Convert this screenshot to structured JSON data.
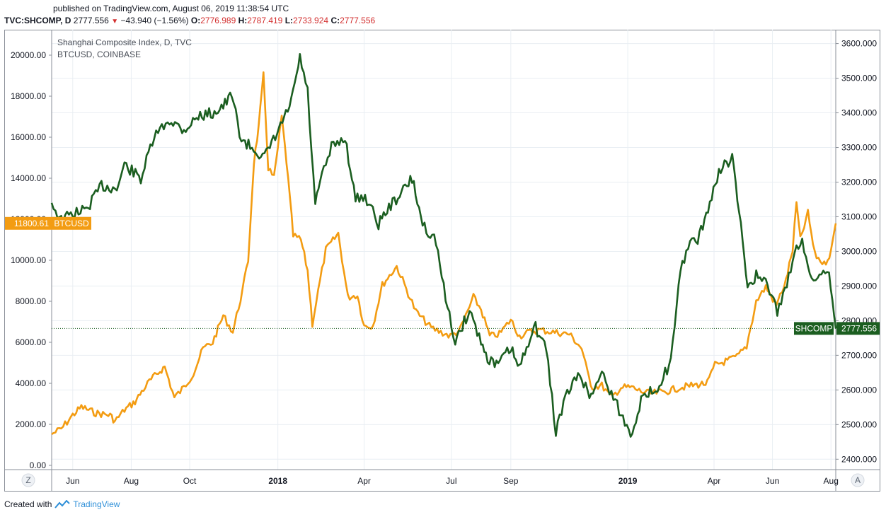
{
  "header": {
    "published": "published on TradingView.com, August 06, 2019 11:38:54 UTC",
    "symbol": "TVC:SHCOMP, D",
    "last": "2777.556",
    "change": "−43.940 (−1.56%)",
    "o_label": "O:",
    "o_value": "2776.989",
    "h_label": "H:",
    "h_value": "2787.419",
    "l_label": "L:",
    "l_value": "2733.924",
    "c_label": "C:",
    "c_value": "2777.556"
  },
  "footer": {
    "created_with": "Created with",
    "brand": "TradingView"
  },
  "colors": {
    "shcomp": "#1b5e20",
    "btc": "#f39c12",
    "grid": "#e9eef3",
    "frame": "#8a8f98",
    "down": "#d32f2f"
  },
  "chart_data": {
    "type": "line",
    "title": "Shanghai Composite Index, D, TVC",
    "subtitle": "BTCUSD, COINBASE",
    "x_ticks": [
      "Jun",
      "Aug",
      "Oct",
      "2018",
      "Apr",
      "Jul",
      "Sep",
      "2019",
      "Apr",
      "Jun",
      "Aug"
    ],
    "x_ticks_bold": [
      "2018",
      "2019"
    ],
    "left_axis": {
      "series": "BTCUSD",
      "ticks": [
        "0.00",
        "2000.00",
        "4000.00",
        "6000.00",
        "8000.00",
        "10000.00",
        "12000.00",
        "14000.00",
        "16000.00",
        "18000.00",
        "20000.00"
      ],
      "ylim": [
        0,
        20000
      ]
    },
    "right_axis": {
      "series": "SHCOMP",
      "ticks": [
        "2400.000",
        "2500.000",
        "2600.000",
        "2700.000",
        "2800.000",
        "2900.000",
        "3000.000",
        "3100.000",
        "3200.000",
        "3300.000",
        "3400.000",
        "3500.000",
        "3600.000"
      ],
      "ylim": [
        2370,
        3640
      ]
    },
    "tick_dates": [
      "2017-06-01",
      "2017-08-01",
      "2017-10-01",
      "2018-01-01",
      "2018-04-01",
      "2018-07-01",
      "2018-09-01",
      "2019-01-01",
      "2019-04-01",
      "2019-06-01",
      "2019-08-01"
    ],
    "x_range": [
      "2017-05-10",
      "2019-08-06"
    ],
    "series": [
      {
        "name": "BTCUSD",
        "axis": "left",
        "last_label": "11800.61",
        "last_tag": "BTCUSD",
        "points": [
          [
            "2017-05-10",
            1520
          ],
          [
            "2017-05-20",
            1780
          ],
          [
            "2017-06-01",
            2450
          ],
          [
            "2017-06-10",
            2850
          ],
          [
            "2017-06-25",
            2550
          ],
          [
            "2017-07-10",
            2450
          ],
          [
            "2017-07-15",
            2150
          ],
          [
            "2017-07-25",
            2700
          ],
          [
            "2017-08-05",
            3100
          ],
          [
            "2017-08-12",
            3600
          ],
          [
            "2017-08-20",
            4100
          ],
          [
            "2017-08-31",
            4600
          ],
          [
            "2017-09-05",
            4800
          ],
          [
            "2017-09-15",
            3300
          ],
          [
            "2017-09-25",
            3800
          ],
          [
            "2017-10-05",
            4500
          ],
          [
            "2017-10-15",
            5700
          ],
          [
            "2017-10-25",
            6000
          ],
          [
            "2017-11-05",
            7300
          ],
          [
            "2017-11-15",
            6500
          ],
          [
            "2017-11-25",
            8500
          ],
          [
            "2017-12-01",
            10000
          ],
          [
            "2017-12-07",
            14800
          ],
          [
            "2017-12-12",
            16500
          ],
          [
            "2017-12-17",
            19000
          ],
          [
            "2017-12-22",
            14500
          ],
          [
            "2017-12-28",
            14000
          ],
          [
            "2018-01-05",
            17000
          ],
          [
            "2018-01-10",
            14800
          ],
          [
            "2018-01-17",
            11200
          ],
          [
            "2018-01-25",
            11000
          ],
          [
            "2018-02-01",
            9500
          ],
          [
            "2018-02-06",
            6900
          ],
          [
            "2018-02-12",
            8500
          ],
          [
            "2018-02-20",
            10500
          ],
          [
            "2018-03-05",
            11300
          ],
          [
            "2018-03-15",
            8200
          ],
          [
            "2018-03-25",
            8300
          ],
          [
            "2018-04-01",
            6800
          ],
          [
            "2018-04-10",
            6800
          ],
          [
            "2018-04-20",
            8800
          ],
          [
            "2018-05-05",
            9700
          ],
          [
            "2018-05-15",
            8600
          ],
          [
            "2018-05-25",
            7500
          ],
          [
            "2018-06-10",
            6700
          ],
          [
            "2018-06-20",
            6500
          ],
          [
            "2018-06-30",
            6300
          ],
          [
            "2018-07-10",
            6600
          ],
          [
            "2018-07-24",
            8200
          ],
          [
            "2018-08-01",
            7600
          ],
          [
            "2018-08-10",
            6300
          ],
          [
            "2018-08-20",
            6400
          ],
          [
            "2018-09-01",
            7100
          ],
          [
            "2018-09-10",
            6300
          ],
          [
            "2018-09-20",
            6500
          ],
          [
            "2018-10-01",
            6600
          ],
          [
            "2018-10-15",
            6500
          ],
          [
            "2018-11-01",
            6400
          ],
          [
            "2018-11-14",
            5700
          ],
          [
            "2018-11-20",
            4500
          ],
          [
            "2018-11-25",
            3800
          ],
          [
            "2018-12-05",
            3900
          ],
          [
            "2018-12-15",
            3300
          ],
          [
            "2018-12-25",
            3800
          ],
          [
            "2019-01-05",
            3800
          ],
          [
            "2019-01-15",
            3600
          ],
          [
            "2019-01-25",
            3500
          ],
          [
            "2019-02-10",
            3600
          ],
          [
            "2019-02-25",
            3800
          ],
          [
            "2019-03-10",
            3900
          ],
          [
            "2019-03-25",
            4000
          ],
          [
            "2019-04-02",
            4900
          ],
          [
            "2019-04-15",
            5100
          ],
          [
            "2019-04-25",
            5300
          ],
          [
            "2019-05-05",
            5800
          ],
          [
            "2019-05-15",
            8000
          ],
          [
            "2019-05-25",
            8700
          ],
          [
            "2019-06-05",
            7800
          ],
          [
            "2019-06-15",
            9000
          ],
          [
            "2019-06-22",
            10500
          ],
          [
            "2019-06-26",
            12800
          ],
          [
            "2019-06-30",
            11000
          ],
          [
            "2019-07-08",
            12300
          ],
          [
            "2019-07-15",
            10300
          ],
          [
            "2019-07-25",
            9800
          ],
          [
            "2019-08-01",
            10400
          ],
          [
            "2019-08-06",
            11800
          ]
        ]
      },
      {
        "name": "SHCOMP",
        "axis": "right",
        "last_label": "2777.556",
        "last_tag": "SHCOMP",
        "points": [
          [
            "2017-05-10",
            3140
          ],
          [
            "2017-05-20",
            3090
          ],
          [
            "2017-06-01",
            3110
          ],
          [
            "2017-06-15",
            3120
          ],
          [
            "2017-07-01",
            3190
          ],
          [
            "2017-07-17",
            3180
          ],
          [
            "2017-07-25",
            3250
          ],
          [
            "2017-08-11",
            3210
          ],
          [
            "2017-08-25",
            3330
          ],
          [
            "2017-09-10",
            3380
          ],
          [
            "2017-09-25",
            3350
          ],
          [
            "2017-10-10",
            3390
          ],
          [
            "2017-10-25",
            3400
          ],
          [
            "2017-11-05",
            3420
          ],
          [
            "2017-11-14",
            3450
          ],
          [
            "2017-11-24",
            3320
          ],
          [
            "2017-12-05",
            3300
          ],
          [
            "2017-12-18",
            3270
          ],
          [
            "2018-01-02",
            3350
          ],
          [
            "2018-01-15",
            3430
          ],
          [
            "2018-01-24",
            3560
          ],
          [
            "2018-02-01",
            3460
          ],
          [
            "2018-02-09",
            3130
          ],
          [
            "2018-02-14",
            3200
          ],
          [
            "2018-02-26",
            3300
          ],
          [
            "2018-03-12",
            3330
          ],
          [
            "2018-03-23",
            3150
          ],
          [
            "2018-04-02",
            3160
          ],
          [
            "2018-04-16",
            3080
          ],
          [
            "2018-04-25",
            3120
          ],
          [
            "2018-05-10",
            3170
          ],
          [
            "2018-05-21",
            3210
          ],
          [
            "2018-06-01",
            3080
          ],
          [
            "2018-06-15",
            3030
          ],
          [
            "2018-06-25",
            2860
          ],
          [
            "2018-07-05",
            2740
          ],
          [
            "2018-07-20",
            2830
          ],
          [
            "2018-08-01",
            2740
          ],
          [
            "2018-08-06",
            2700
          ],
          [
            "2018-08-17",
            2670
          ],
          [
            "2018-09-01",
            2720
          ],
          [
            "2018-09-10",
            2660
          ],
          [
            "2018-09-25",
            2790
          ],
          [
            "2018-10-08",
            2720
          ],
          [
            "2018-10-18",
            2480
          ],
          [
            "2018-10-28",
            2580
          ],
          [
            "2018-11-12",
            2650
          ],
          [
            "2018-11-22",
            2580
          ],
          [
            "2018-12-05",
            2650
          ],
          [
            "2018-12-15",
            2590
          ],
          [
            "2019-01-04",
            2470
          ],
          [
            "2019-01-15",
            2570
          ],
          [
            "2019-02-01",
            2610
          ],
          [
            "2019-02-15",
            2680
          ],
          [
            "2019-02-25",
            2940
          ],
          [
            "2019-03-05",
            3020
          ],
          [
            "2019-03-15",
            3030
          ],
          [
            "2019-03-22",
            3090
          ],
          [
            "2019-04-08",
            3240
          ],
          [
            "2019-04-20",
            3270
          ],
          [
            "2019-04-29",
            3070
          ],
          [
            "2019-05-06",
            2900
          ],
          [
            "2019-05-15",
            2930
          ],
          [
            "2019-05-27",
            2900
          ],
          [
            "2019-06-06",
            2830
          ],
          [
            "2019-06-14",
            2880
          ],
          [
            "2019-06-24",
            3000
          ],
          [
            "2019-07-02",
            3040
          ],
          [
            "2019-07-10",
            2920
          ],
          [
            "2019-07-20",
            2930
          ],
          [
            "2019-07-30",
            2950
          ],
          [
            "2019-08-06",
            2777.556
          ]
        ]
      }
    ],
    "grid": true,
    "legend": "top-left",
    "corner_labels": {
      "left": "Z",
      "right": "A"
    }
  }
}
